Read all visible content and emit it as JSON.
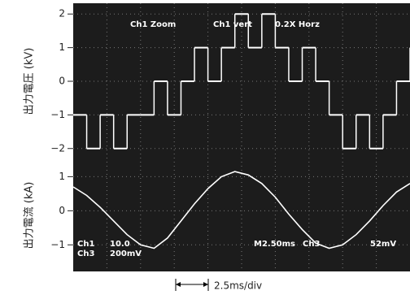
{
  "chart_data": [
    {
      "type": "line",
      "ylabel": "出力電圧 (kV)",
      "color": "#ffffff",
      "step": true,
      "xlim": [
        0,
        25
      ],
      "ylim": [
        -2.32,
        2.32
      ],
      "yticks": [
        2,
        1,
        0,
        {
          "value": -1,
          "label": "−1"
        },
        {
          "value": -2,
          "label": "−2"
        }
      ],
      "x": [
        0,
        1,
        2,
        3,
        4,
        5,
        6,
        7,
        8,
        9,
        10,
        11,
        12,
        13,
        14,
        15,
        16,
        17,
        18,
        19,
        20,
        21,
        22,
        23,
        24,
        25
      ],
      "values": [
        -1,
        -2,
        -1,
        -2,
        -1,
        -1,
        0,
        -1,
        0,
        1,
        0,
        1,
        2,
        1,
        2,
        1,
        0,
        1,
        0,
        -1,
        -2,
        -1,
        -2,
        -1,
        0,
        1
      ]
    },
    {
      "type": "line",
      "ylabel": "出力電流 (kA)",
      "color": "#ffffff",
      "step": false,
      "xlim": [
        0,
        25
      ],
      "ylim": [
        -1.78,
        1.51
      ],
      "yticks": [
        1,
        0,
        {
          "value": -1,
          "label": "−1"
        }
      ],
      "x": [
        0,
        1,
        2,
        3,
        4,
        5,
        6,
        7,
        8,
        9,
        10,
        11,
        12,
        13,
        14,
        15,
        16,
        17,
        18,
        19,
        20,
        21,
        22,
        23,
        24,
        25
      ],
      "values": [
        0.7,
        0.45,
        0.1,
        -0.3,
        -0.7,
        -1.0,
        -1.1,
        -0.8,
        -0.3,
        0.2,
        0.65,
        1.0,
        1.15,
        1.05,
        0.8,
        0.4,
        -0.1,
        -0.55,
        -0.95,
        -1.1,
        -1.0,
        -0.7,
        -0.3,
        0.15,
        0.55,
        0.8
      ]
    }
  ],
  "overlay": {
    "top": [
      "Ch1 Zoom",
      "Ch1 vert",
      "0.2X Horz"
    ],
    "bottom": [
      "Ch1",
      "10.0",
      "Ch3",
      "200mV",
      "M2.50ms",
      "Ch3",
      "52mV"
    ]
  },
  "scale_annotation": "2.5ms/div"
}
